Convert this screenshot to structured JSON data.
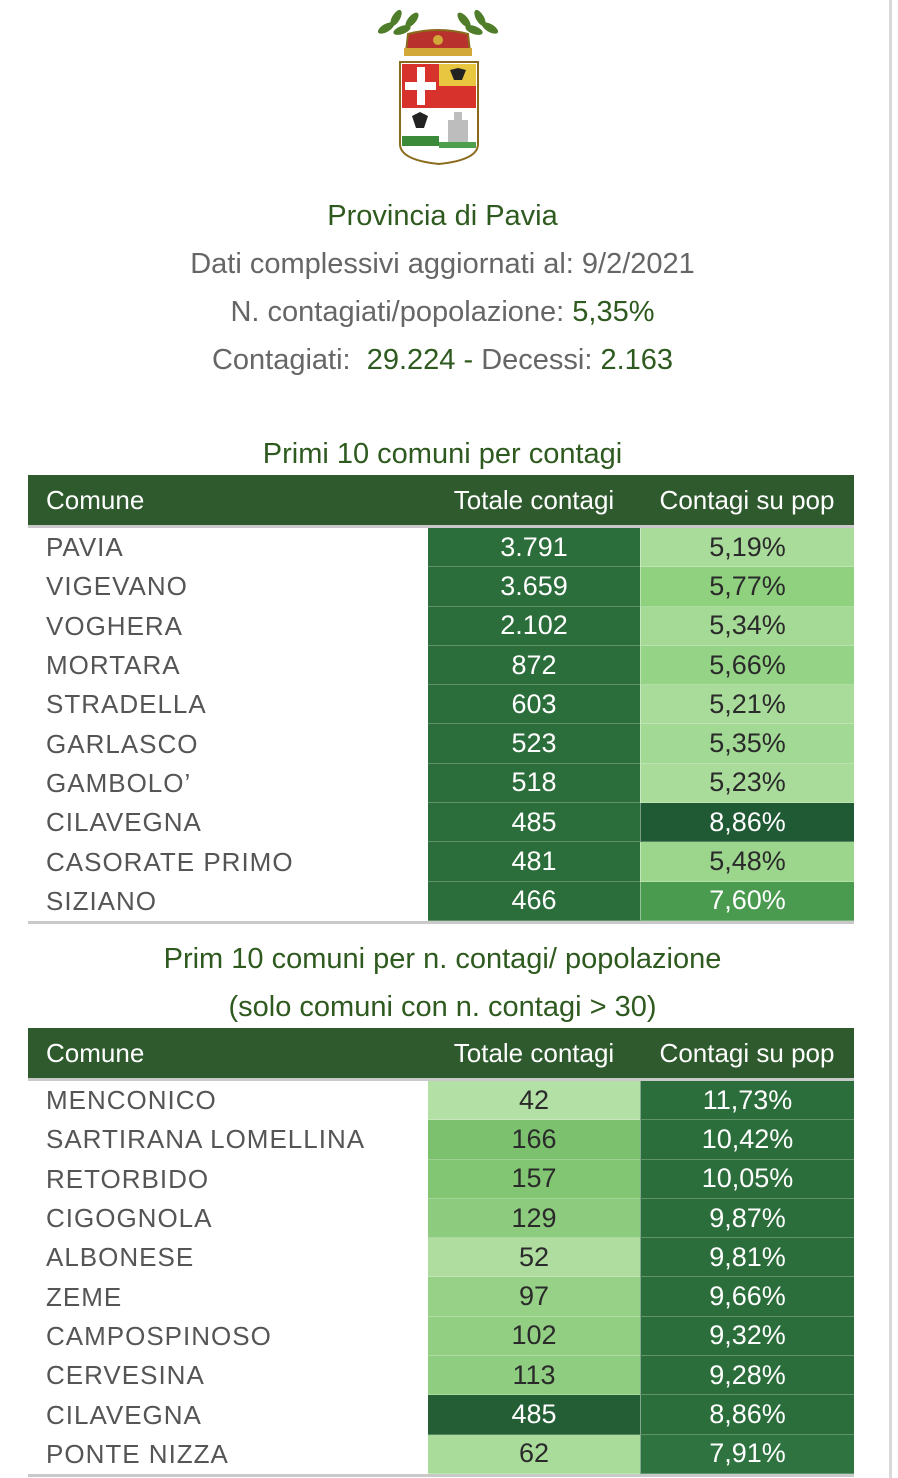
{
  "header": {
    "title": "Provincia di Pavia",
    "updated_label": "Dati complessivi aggiornati al:",
    "updated_date": "9/2/2021",
    "ratio_label": "N. contagiati/popolazione:",
    "ratio_value": "5,35%",
    "infected_label": "Contagiati:",
    "infected_value": "29.224",
    "separator": "-",
    "deaths_label": "Decessi:",
    "deaths_value": "2.163"
  },
  "colors": {
    "header_green": "#2e5a2e",
    "text_green": "#2e5a1f",
    "shade_dark": "#2b6e3b",
    "shade_medium": "#3f8e4a",
    "shade_light": "#8bcf7f",
    "shade_lighter": "#a9dc9b"
  },
  "table1": {
    "title": "Primi 10 comuni per contagi",
    "columns": [
      "Comune",
      "Totale contagi",
      "Contagi su pop"
    ],
    "rows": [
      {
        "comune": "PAVIA",
        "totale": "3.791",
        "pop": "5,19%",
        "c2": "#2b6e3b",
        "c3": "#a9dc9b",
        "t2": "#ffffff",
        "t3": "#2a2a2a"
      },
      {
        "comune": "VIGEVANO",
        "totale": "3.659",
        "pop": "5,77%",
        "c2": "#2b6e3b",
        "c3": "#8fd17f",
        "t2": "#ffffff",
        "t3": "#2a2a2a"
      },
      {
        "comune": "VOGHERA",
        "totale": "2.102",
        "pop": "5,34%",
        "c2": "#2b6e3b",
        "c3": "#a4da95",
        "t2": "#ffffff",
        "t3": "#2a2a2a"
      },
      {
        "comune": "MORTARA",
        "totale": "872",
        "pop": "5,66%",
        "c2": "#2b6e3b",
        "c3": "#95d386",
        "t2": "#ffffff",
        "t3": "#2a2a2a"
      },
      {
        "comune": "STRADELLA",
        "totale": "603",
        "pop": "5,21%",
        "c2": "#2b6e3b",
        "c3": "#a9dc9b",
        "t2": "#ffffff",
        "t3": "#2a2a2a"
      },
      {
        "comune": "GARLASCO",
        "totale": "523",
        "pop": "5,35%",
        "c2": "#2b6e3b",
        "c3": "#a2d994",
        "t2": "#ffffff",
        "t3": "#2a2a2a"
      },
      {
        "comune": "GAMBOLO’",
        "totale": "518",
        "pop": "5,23%",
        "c2": "#2b6e3b",
        "c3": "#a9dc9b",
        "t2": "#ffffff",
        "t3": "#2a2a2a"
      },
      {
        "comune": "CILAVEGNA",
        "totale": "485",
        "pop": "8,86%",
        "c2": "#2b6e3b",
        "c3": "#1f5a34",
        "t2": "#ffffff",
        "t3": "#ffffff"
      },
      {
        "comune": "CASORATE PRIMO",
        "totale": "481",
        "pop": "5,48%",
        "c2": "#2b6e3b",
        "c3": "#9cd68d",
        "t2": "#ffffff",
        "t3": "#2a2a2a"
      },
      {
        "comune": "SIZIANO",
        "totale": "466",
        "pop": "7,60%",
        "c2": "#2b6e3b",
        "c3": "#4a9a4f",
        "t2": "#ffffff",
        "t3": "#ffffff"
      }
    ]
  },
  "table2": {
    "title_line1": "Prim 10 comuni per n. contagi/ popolazione",
    "title_line2": "(solo comuni con n. contagi > 30)",
    "columns": [
      "Comune",
      "Totale contagi",
      "Contagi su pop"
    ],
    "rows": [
      {
        "comune": "MENCONICO",
        "totale": "42",
        "pop": "11,73%",
        "c2": "#b3e0a5",
        "c3": "#2b6e3b",
        "t2": "#2a2a2a",
        "t3": "#ffffff"
      },
      {
        "comune": "SARTIRANA LOMELLINA",
        "totale": "166",
        "pop": "10,42%",
        "c2": "#7cc16e",
        "c3": "#2b6e3b",
        "t2": "#2a2a2a",
        "t3": "#ffffff"
      },
      {
        "comune": "RETORBIDO",
        "totale": "157",
        "pop": "10,05%",
        "c2": "#82c674",
        "c3": "#2b6e3b",
        "t2": "#2a2a2a",
        "t3": "#ffffff"
      },
      {
        "comune": "CIGOGNOLA",
        "totale": "129",
        "pop": "9,87%",
        "c2": "#8dcc7e",
        "c3": "#2b6e3b",
        "t2": "#2a2a2a",
        "t3": "#ffffff"
      },
      {
        "comune": "ALBONESE",
        "totale": "52",
        "pop": "9,81%",
        "c2": "#aedd9f",
        "c3": "#2b6e3b",
        "t2": "#2a2a2a",
        "t3": "#ffffff"
      },
      {
        "comune": "ZEME",
        "totale": "97",
        "pop": "9,66%",
        "c2": "#96d187",
        "c3": "#2b6e3b",
        "t2": "#2a2a2a",
        "t3": "#ffffff"
      },
      {
        "comune": "CAMPOSPINOSO",
        "totale": "102",
        "pop": "9,32%",
        "c2": "#92cf83",
        "c3": "#2b6e3b",
        "t2": "#2a2a2a",
        "t3": "#ffffff"
      },
      {
        "comune": "CERVESINA",
        "totale": "113",
        "pop": "9,28%",
        "c2": "#8fcd80",
        "c3": "#2b6e3b",
        "t2": "#2a2a2a",
        "t3": "#ffffff"
      },
      {
        "comune": "CILAVEGNA",
        "totale": "485",
        "pop": "8,86%",
        "c2": "#245e35",
        "c3": "#2b6e3b",
        "t2": "#ffffff",
        "t3": "#ffffff"
      },
      {
        "comune": "PONTE NIZZA",
        "totale": "62",
        "pop": "7,91%",
        "c2": "#a9dc9b",
        "c3": "#2f7440",
        "t2": "#2a2a2a",
        "t3": "#ffffff"
      }
    ]
  }
}
